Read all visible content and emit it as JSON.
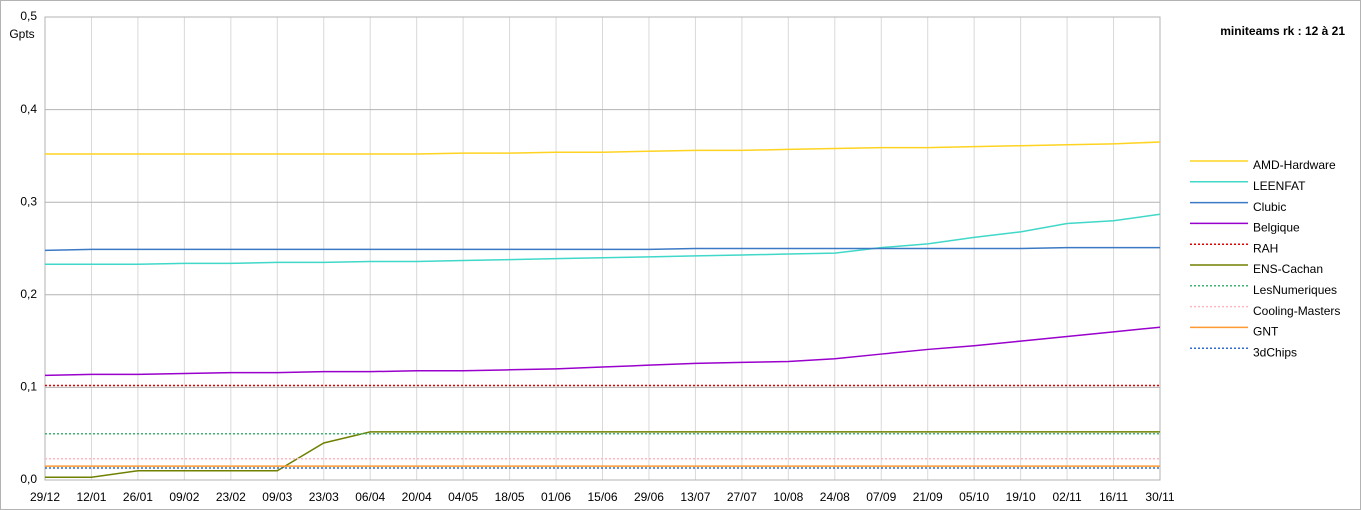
{
  "chart_data": {
    "type": "line",
    "title": "miniteams rk : 12 à 21",
    "y_label": "Gpts",
    "categories": [
      "29/12",
      "12/01",
      "26/01",
      "09/02",
      "23/02",
      "09/03",
      "23/03",
      "06/04",
      "20/04",
      "04/05",
      "18/05",
      "01/06",
      "15/06",
      "29/06",
      "13/07",
      "27/07",
      "10/08",
      "24/08",
      "07/09",
      "21/09",
      "05/10",
      "19/10",
      "02/11",
      "16/11",
      "30/11"
    ],
    "ylim": [
      0,
      0.5
    ],
    "yticks": [
      {
        "value": 0,
        "label": "0,0"
      },
      {
        "value": 0.1,
        "label": "0,1"
      },
      {
        "value": 0.2,
        "label": "0,2"
      },
      {
        "value": 0.3,
        "label": "0,3"
      },
      {
        "value": 0.4,
        "label": "0,4"
      },
      {
        "value": 0.5,
        "label": "0,5"
      }
    ],
    "grid": true,
    "series": [
      {
        "name": "AMD-Hardware",
        "color": "#ffd320",
        "style": "solid",
        "values": [
          0.352,
          0.352,
          0.352,
          0.352,
          0.352,
          0.352,
          0.352,
          0.352,
          0.352,
          0.353,
          0.353,
          0.354,
          0.354,
          0.355,
          0.356,
          0.356,
          0.357,
          0.358,
          0.359,
          0.359,
          0.36,
          0.361,
          0.362,
          0.363,
          0.365
        ]
      },
      {
        "name": "LEENFAT",
        "color": "#40d8c8",
        "style": "solid",
        "values": [
          0.233,
          0.233,
          0.233,
          0.234,
          0.234,
          0.235,
          0.235,
          0.236,
          0.236,
          0.237,
          0.238,
          0.239,
          0.24,
          0.241,
          0.242,
          0.243,
          0.244,
          0.245,
          0.251,
          0.255,
          0.262,
          0.268,
          0.277,
          0.28,
          0.287
        ]
      },
      {
        "name": "Clubic",
        "color": "#3b79c4",
        "style": "solid",
        "values": [
          0.248,
          0.249,
          0.249,
          0.249,
          0.249,
          0.249,
          0.249,
          0.249,
          0.249,
          0.249,
          0.249,
          0.249,
          0.249,
          0.249,
          0.25,
          0.25,
          0.25,
          0.25,
          0.25,
          0.25,
          0.25,
          0.25,
          0.251,
          0.251,
          0.251
        ]
      },
      {
        "name": "Belgique",
        "color": "#9900cc",
        "style": "solid",
        "values": [
          0.113,
          0.114,
          0.114,
          0.115,
          0.116,
          0.116,
          0.117,
          0.117,
          0.118,
          0.118,
          0.119,
          0.12,
          0.122,
          0.124,
          0.126,
          0.127,
          0.128,
          0.131,
          0.136,
          0.141,
          0.145,
          0.15,
          0.155,
          0.16,
          0.165
        ]
      },
      {
        "name": "RAH",
        "color": "#e00000",
        "style": "dotted",
        "values": [
          0.102,
          0.102,
          0.102,
          0.102,
          0.102,
          0.102,
          0.102,
          0.102,
          0.102,
          0.102,
          0.102,
          0.102,
          0.102,
          0.102,
          0.102,
          0.102,
          0.102,
          0.102,
          0.102,
          0.102,
          0.102,
          0.102,
          0.102,
          0.102,
          0.102
        ]
      },
      {
        "name": "ENS-Cachan",
        "color": "#708000",
        "style": "solid",
        "values": [
          0.003,
          0.003,
          0.01,
          0.01,
          0.01,
          0.01,
          0.04,
          0.052,
          0.052,
          0.052,
          0.052,
          0.052,
          0.052,
          0.052,
          0.052,
          0.052,
          0.052,
          0.052,
          0.052,
          0.052,
          0.052,
          0.052,
          0.052,
          0.052,
          0.052
        ]
      },
      {
        "name": "LesNumeriques",
        "color": "#3cb371",
        "style": "dotted",
        "values": [
          0.05,
          0.05,
          0.05,
          0.05,
          0.05,
          0.05,
          0.05,
          0.05,
          0.05,
          0.05,
          0.05,
          0.05,
          0.05,
          0.05,
          0.05,
          0.05,
          0.05,
          0.05,
          0.05,
          0.05,
          0.05,
          0.05,
          0.05,
          0.05,
          0.05
        ]
      },
      {
        "name": "Cooling-Masters",
        "color": "#ffb6c1",
        "style": "dotted",
        "values": [
          0.023,
          0.023,
          0.023,
          0.023,
          0.023,
          0.023,
          0.023,
          0.023,
          0.023,
          0.023,
          0.023,
          0.023,
          0.023,
          0.023,
          0.023,
          0.023,
          0.023,
          0.023,
          0.023,
          0.023,
          0.023,
          0.023,
          0.023,
          0.023,
          0.023
        ]
      },
      {
        "name": "GNT",
        "color": "#ff9933",
        "style": "solid",
        "values": [
          0.015,
          0.015,
          0.015,
          0.015,
          0.015,
          0.015,
          0.015,
          0.015,
          0.015,
          0.015,
          0.015,
          0.015,
          0.015,
          0.015,
          0.015,
          0.015,
          0.015,
          0.015,
          0.015,
          0.015,
          0.015,
          0.015,
          0.015,
          0.015,
          0.015
        ]
      },
      {
        "name": "3dChips",
        "color": "#2f6bd0",
        "style": "dotted",
        "values": [
          0.013,
          0.013,
          0.013,
          0.013,
          0.013,
          0.013,
          0.013,
          0.013,
          0.013,
          0.013,
          0.013,
          0.013,
          0.013,
          0.013,
          0.013,
          0.013,
          0.013,
          0.013,
          0.013,
          0.013,
          0.013,
          0.013,
          0.013,
          0.013,
          0.013
        ]
      }
    ]
  }
}
